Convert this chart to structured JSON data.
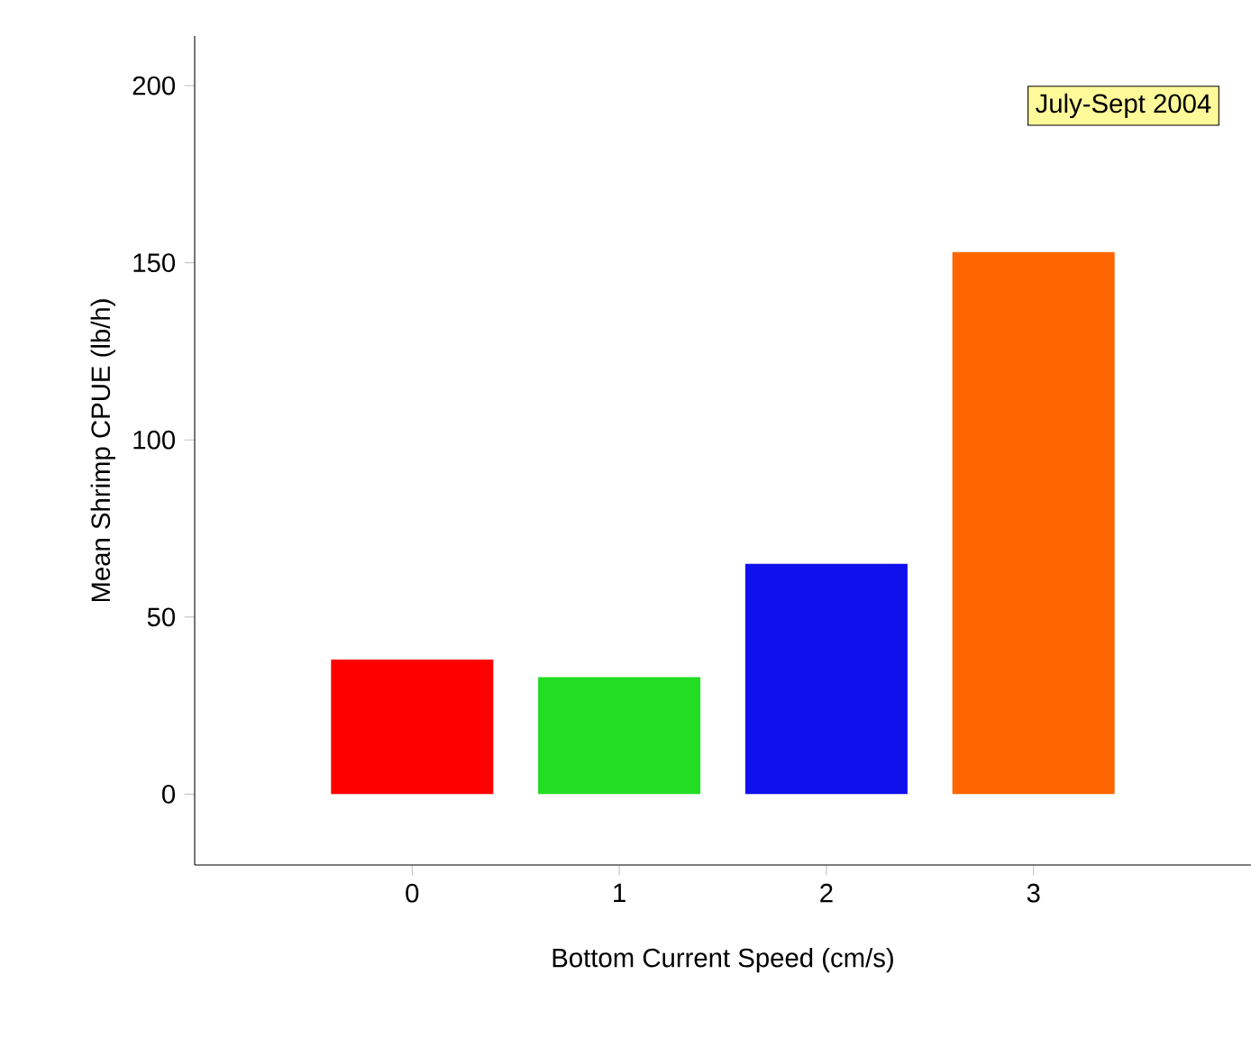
{
  "chart_data": {
    "type": "bar",
    "xlabel": "Bottom Current Speed (cm/s)",
    "ylabel": "Mean Shrimp CPUE (lb/h)",
    "categories": [
      "0",
      "1",
      "2",
      "3"
    ],
    "values": [
      38,
      33,
      65,
      153
    ],
    "colors": [
      "#ff0000",
      "#22dd22",
      "#1010ee",
      "#ff6600"
    ],
    "ylim": [
      -20,
      214
    ],
    "yticks": [
      0,
      50,
      100,
      150,
      200
    ],
    "annotations": [
      "July-Sept 2004"
    ],
    "grid": false
  }
}
